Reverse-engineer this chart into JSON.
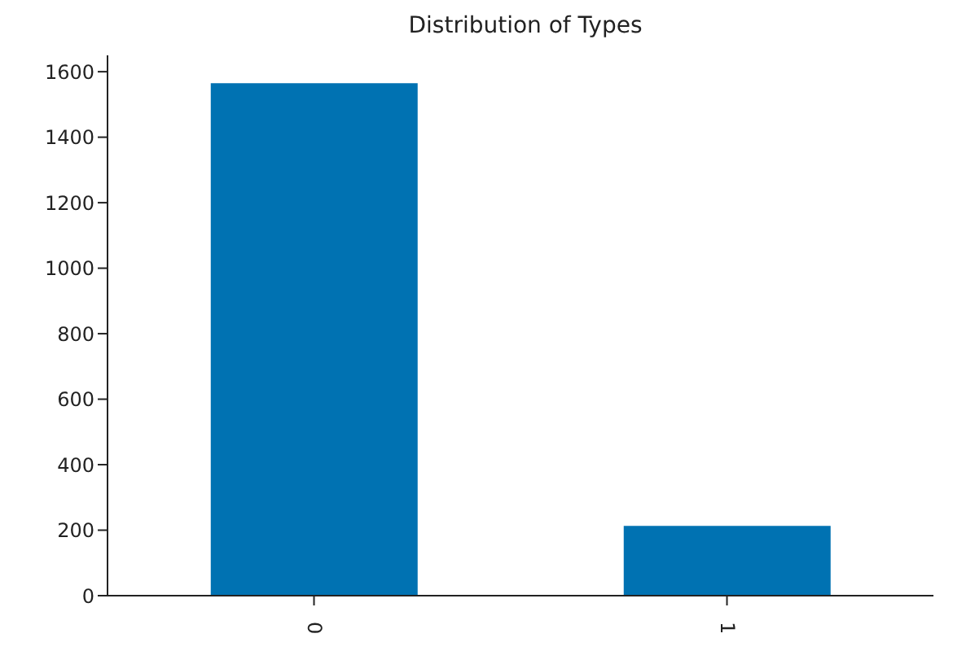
{
  "chart_data": {
    "type": "bar",
    "title": "Distribution of Types",
    "categories": [
      "0",
      "1"
    ],
    "values": [
      1565,
      213
    ],
    "color": "#0072b2",
    "ylim": [
      0,
      1650
    ],
    "yticks": [
      0,
      200,
      400,
      600,
      800,
      1000,
      1200,
      1400,
      1600
    ],
    "grid": false,
    "legend": false
  }
}
